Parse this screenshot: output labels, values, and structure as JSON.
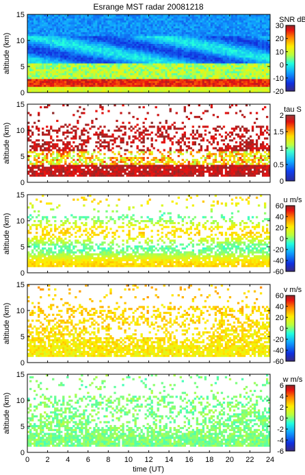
{
  "chart_data": {
    "type": "heatmap",
    "title": "Esrange MST radar 20081218",
    "xlabel": "time (UT)",
    "x_ticks": [
      "0",
      "2",
      "4",
      "6",
      "8",
      "10",
      "12",
      "14",
      "16",
      "18",
      "20",
      "22",
      "24"
    ],
    "xlim": [
      0,
      24
    ],
    "panels": [
      {
        "name": "snr",
        "ylabel": "altitude (km)",
        "y_ticks": [
          "0",
          "5",
          "10",
          "15"
        ],
        "ylim": [
          0,
          15
        ],
        "colorbar_label": "SNR dB",
        "colorbar_ticks": [
          "30",
          "20",
          "10",
          "0",
          "-10",
          "-20"
        ],
        "colorbar_range": [
          -20,
          30
        ]
      },
      {
        "name": "tau",
        "ylabel": "altitude (km)",
        "y_ticks": [
          "0",
          "5",
          "10",
          "15"
        ],
        "ylim": [
          0,
          15
        ],
        "colorbar_label": "tau S",
        "colorbar_ticks": [
          "2",
          "1.5",
          "1",
          "0.5",
          "0"
        ],
        "colorbar_range": [
          0,
          2
        ]
      },
      {
        "name": "u",
        "ylabel": "altitude (km)",
        "y_ticks": [
          "0",
          "5",
          "10",
          "15"
        ],
        "ylim": [
          0,
          15
        ],
        "colorbar_label": "u m/s",
        "colorbar_ticks": [
          "60",
          "40",
          "20",
          "0",
          "-20",
          "-40",
          "-60"
        ],
        "colorbar_range": [
          -60,
          60
        ]
      },
      {
        "name": "v",
        "ylabel": "altitude (km)",
        "y_ticks": [
          "0",
          "5",
          "10",
          "15"
        ],
        "ylim": [
          0,
          15
        ],
        "colorbar_label": "v m/s",
        "colorbar_ticks": [
          "60",
          "40",
          "20",
          "0",
          "-20",
          "-40",
          "-60"
        ],
        "colorbar_range": [
          -60,
          60
        ]
      },
      {
        "name": "w",
        "ylabel": "altitude (km)",
        "y_ticks": [
          "0",
          "5",
          "10",
          "15"
        ],
        "ylim": [
          0,
          15
        ],
        "colorbar_label": "w m/s",
        "colorbar_ticks": [
          "6",
          "4",
          "2",
          "0",
          "-2",
          "-4",
          "-6"
        ],
        "colorbar_range": [
          -6,
          6
        ]
      }
    ]
  }
}
